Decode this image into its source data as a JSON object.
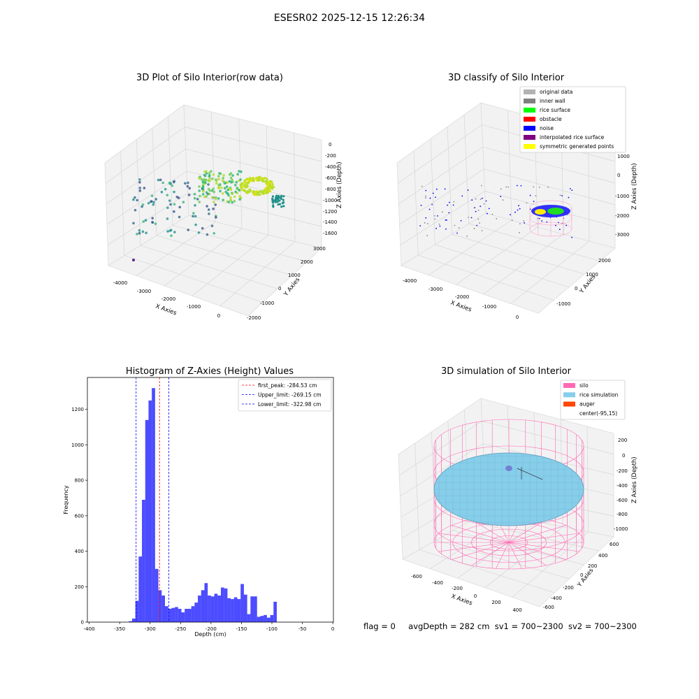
{
  "suptitle": "ESESR02 2025-12-15 12:26:34",
  "panels": {
    "raw": {
      "title": "3D Plot of Silo Interior(row data)",
      "xlabel": "X Axies",
      "ylabel": "Y Axies",
      "zlabel": "Z Axies (Depth)",
      "xticks": [
        "-4000",
        "-3000",
        "-2000",
        "-1000",
        "0"
      ],
      "yticks": [
        "-2000",
        "-1000",
        "0",
        "1000",
        "2000",
        "3000"
      ],
      "zticks": [
        "0",
        "-200",
        "-400",
        "-600",
        "-800",
        "-1000",
        "-1200",
        "-1400",
        "-1600"
      ]
    },
    "classify": {
      "title": "3D classify of Silo Interior",
      "xlabel": "X Axies",
      "ylabel": "Y Axies",
      "zlabel": "Z Axies (Depth)",
      "xticks": [
        "-4000",
        "-3000",
        "-2000",
        "-1000",
        "0"
      ],
      "yticks": [
        "-1000",
        "0",
        "1000",
        "2000"
      ],
      "zticks": [
        "1000",
        "0",
        "-1000",
        "-2000",
        "-3000"
      ],
      "legend": [
        {
          "label": "original data",
          "color": "#b3b3b3"
        },
        {
          "label": "inner wall",
          "color": "#808080"
        },
        {
          "label": "rice surface",
          "color": "#00ff00"
        },
        {
          "label": "obstacle",
          "color": "#ff0000"
        },
        {
          "label": "noise",
          "color": "#0000ff"
        },
        {
          "label": "interpolated rice surface",
          "color": "#800080"
        },
        {
          "label": "symmetric generated points",
          "color": "#ffff00"
        }
      ]
    },
    "simulation": {
      "title": "3D simulation of Silo Interior",
      "xlabel": "X Axies",
      "ylabel": "Y Axies",
      "zlabel": "Z Axies (Depth)",
      "xticks": [
        "-600",
        "-400",
        "-200",
        "0",
        "200",
        "400"
      ],
      "yticks": [
        "-600",
        "-400",
        "-200",
        "0",
        "200",
        "400",
        "600"
      ],
      "zticks": [
        "200",
        "0",
        "-200",
        "-400",
        "-600",
        "-800",
        "-1000"
      ],
      "legend": [
        {
          "label": "silo",
          "color": "#ff69b4"
        },
        {
          "label": "rice simulation",
          "color": "#87ceeb"
        },
        {
          "label": "auger",
          "color": "#ff4500"
        },
        {
          "label": "center(-95,15)",
          "color": ""
        }
      ]
    }
  },
  "chart_data": {
    "type": "bar",
    "title": "Histogram of Z-Axies (Height) Values",
    "xlabel": "Depth (cm)",
    "ylabel": "Frequency",
    "xlim": [
      -403,
      1
    ],
    "ylim": [
      0,
      1380
    ],
    "xticks": [
      -400,
      -350,
      -300,
      -250,
      -200,
      -150,
      -100,
      -50,
      0
    ],
    "yticks": [
      0,
      200,
      400,
      600,
      800,
      1000,
      1200
    ],
    "bar_color": "#0000ff",
    "bin_start": -335,
    "bin_width": 5.4,
    "values": [
      5,
      20,
      120,
      370,
      690,
      1140,
      1250,
      1320,
      300,
      180,
      150,
      90,
      75,
      80,
      85,
      75,
      55,
      75,
      75,
      90,
      110,
      150,
      180,
      220,
      150,
      145,
      160,
      150,
      195,
      190,
      135,
      130,
      140,
      130,
      215,
      155,
      45,
      145,
      145,
      30,
      35,
      40,
      25,
      40,
      115
    ],
    "vlines": [
      {
        "label": "first_peak: -284.53 cm",
        "x": -284.53,
        "color": "#ff0000"
      },
      {
        "label": "Upper_limit: -269.15 cm",
        "x": -269.15,
        "color": "#0000ff"
      },
      {
        "label": "Lower_limit: -322.98 cm",
        "x": -322.98,
        "color": "#0000ff"
      }
    ]
  },
  "footer": {
    "flag": "flag = 0",
    "avg": "avgDepth = 282 cm",
    "sv1": "sv1 = 700~2300",
    "sv2": "sv2 = 700~2300"
  }
}
